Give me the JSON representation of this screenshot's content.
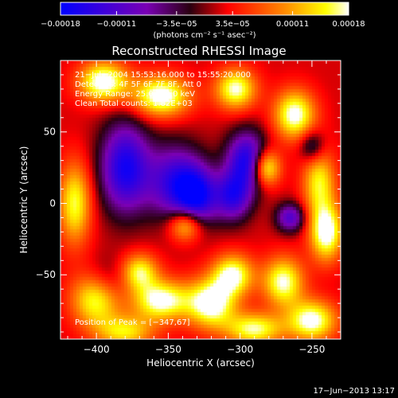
{
  "chart_data": {
    "type": "heatmap",
    "title": "Reconstructed RHESSI Image",
    "xlabel": "Heliocentric X (arcsec)",
    "ylabel": "Heliocentric Y (arcsec)",
    "xlim": [
      -425,
      -230
    ],
    "ylim": [
      -95,
      100
    ],
    "x_ticks": [
      -400,
      -350,
      -300,
      -250
    ],
    "x_tick_labels": [
      "−400",
      "−350",
      "−300",
      "−250"
    ],
    "y_ticks": [
      -50,
      0,
      50
    ],
    "y_tick_labels": [
      "−50",
      "0",
      "50"
    ],
    "colorbar": {
      "range": [
        -0.00018,
        0.00018
      ],
      "ticks": [
        -0.00018,
        -0.00011,
        -3.5e-05,
        3.5e-05,
        0.00011,
        0.00018
      ],
      "tick_labels": [
        "−0.00018",
        "−0.00011",
        "−3.5e−05",
        "3.5e−05",
        "0.00011",
        "0.00018"
      ],
      "unit_label": "(photons cm⁻² s⁻¹ asec⁻²)",
      "colormap": [
        "#0000ff",
        "#7a00b4",
        "#2a0010",
        "#ff0000",
        "#ff8c00",
        "#ffff00",
        "#ffffff"
      ]
    },
    "annotations": [
      "21−Jul−2004 15:53:16.000 to 15:55:20.000",
      "Detectors: 4F 5F 6F 7F 8F, Att 0",
      "Energy Range: 25.0−50.0 keV",
      "Clean    Total counts: 1.82E+03",
      "Position of Peak = [−347,67]"
    ],
    "peak": [
      -347,
      67
    ],
    "blobs": [
      {
        "x": -380,
        "y": 25,
        "sx": 12,
        "sy": 22,
        "v": -0.00018
      },
      {
        "x": -345,
        "y": 15,
        "sx": 14,
        "sy": 18,
        "v": -0.00015
      },
      {
        "x": -330,
        "y": 5,
        "sx": 10,
        "sy": 14,
        "v": -0.00016
      },
      {
        "x": -295,
        "y": 30,
        "sx": 10,
        "sy": 14,
        "v": -0.00018
      },
      {
        "x": -305,
        "y": 5,
        "sx": 9,
        "sy": 12,
        "v": -0.00015
      },
      {
        "x": -265,
        "y": -10,
        "sx": 7,
        "sy": 7,
        "v": -0.00013
      },
      {
        "x": -395,
        "y": -55,
        "sx": 12,
        "sy": 12,
        "v": -9e-05
      },
      {
        "x": -250,
        "y": 40,
        "sx": 6,
        "sy": 8,
        "v": -9e-05
      },
      {
        "x": -395,
        "y": 85,
        "sx": 12,
        "sy": 10,
        "v": 0.00018
      },
      {
        "x": -355,
        "y": 75,
        "sx": 14,
        "sy": 10,
        "v": 0.00018
      },
      {
        "x": -303,
        "y": 80,
        "sx": 10,
        "sy": 10,
        "v": 0.00016
      },
      {
        "x": -262,
        "y": 62,
        "sx": 10,
        "sy": 12,
        "v": 0.00017
      },
      {
        "x": -282,
        "y": 25,
        "sx": 7,
        "sy": 9,
        "v": 0.00017
      },
      {
        "x": -245,
        "y": 15,
        "sx": 8,
        "sy": 16,
        "v": 0.00013
      },
      {
        "x": -240,
        "y": -20,
        "sx": 8,
        "sy": 14,
        "v": 0.00018
      },
      {
        "x": -415,
        "y": 0,
        "sx": 8,
        "sy": 20,
        "v": 0.00014
      },
      {
        "x": -400,
        "y": -65,
        "sx": 12,
        "sy": 14,
        "v": 0.00018
      },
      {
        "x": -370,
        "y": -48,
        "sx": 9,
        "sy": 9,
        "v": 0.00014
      },
      {
        "x": -338,
        "y": -15,
        "sx": 8,
        "sy": 8,
        "v": 0.00014
      },
      {
        "x": -355,
        "y": -68,
        "sx": 14,
        "sy": 10,
        "v": 0.00017
      },
      {
        "x": -320,
        "y": -70,
        "sx": 12,
        "sy": 12,
        "v": 0.00018
      },
      {
        "x": -305,
        "y": -50,
        "sx": 10,
        "sy": 10,
        "v": 0.00016
      },
      {
        "x": -270,
        "y": -55,
        "sx": 10,
        "sy": 12,
        "v": 0.00016
      },
      {
        "x": -250,
        "y": -82,
        "sx": 12,
        "sy": 10,
        "v": 0.00017
      },
      {
        "x": -290,
        "y": -88,
        "sx": 14,
        "sy": 8,
        "v": 0.00015
      },
      {
        "x": -380,
        "y": -90,
        "sx": 14,
        "sy": 8,
        "v": 0.00012
      }
    ]
  },
  "footer": {
    "timestamp": "17−Jun−2013 13:17"
  }
}
